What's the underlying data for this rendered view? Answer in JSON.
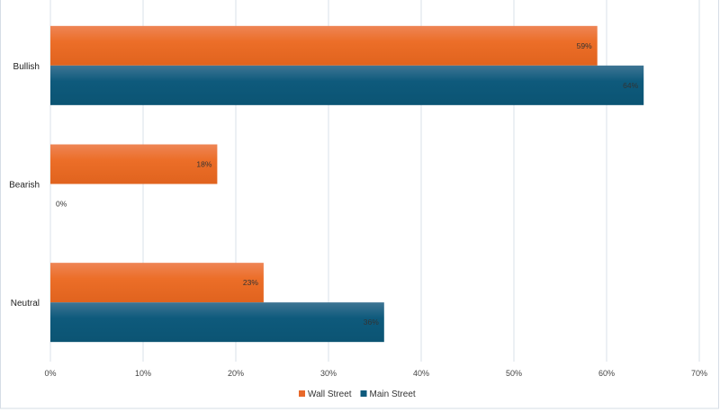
{
  "chart_data": {
    "type": "bar",
    "orientation": "horizontal",
    "title": "",
    "xlabel": "",
    "ylabel": "",
    "categories": [
      "Bullish",
      "Bearish",
      "Neutral"
    ],
    "series": [
      {
        "name": "Wall Street",
        "color": "#E8692A",
        "values": [
          59,
          18,
          23
        ],
        "labels": [
          "59%",
          "18%",
          "23%"
        ]
      },
      {
        "name": "Main Street",
        "color": "#0E5A7C",
        "values": [
          64,
          0,
          36
        ],
        "labels": [
          "64%",
          "0%",
          "36%"
        ]
      }
    ],
    "xlim": [
      0,
      70
    ],
    "xticks": [
      "0%",
      "10%",
      "20%",
      "30%",
      "40%",
      "50%",
      "60%",
      "70%"
    ],
    "grid": true,
    "legend": "bottom"
  }
}
